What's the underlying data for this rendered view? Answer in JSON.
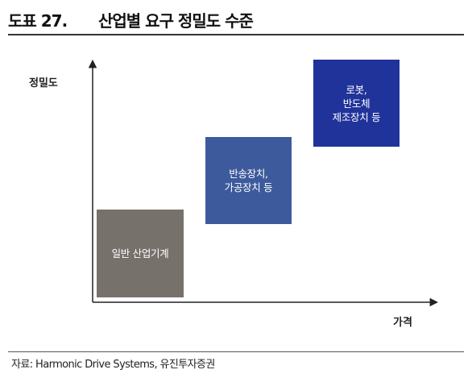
{
  "header": {
    "figure_number": "도표 27.",
    "title": "산업별 요구 정밀도 수준"
  },
  "axes": {
    "y_label": "정밀도",
    "x_label": "가격"
  },
  "boxes": [
    {
      "text": "일반 산업기계",
      "color": "#77716c"
    },
    {
      "text": "반송장치,\n가공장치 등",
      "color": "#3d5a9c"
    },
    {
      "text": "로봇,\n반도체\n제조장치 등",
      "color": "#20339a"
    }
  ],
  "footer": {
    "source": "자료: Harmonic Drive Systems, 유진투자증권"
  }
}
